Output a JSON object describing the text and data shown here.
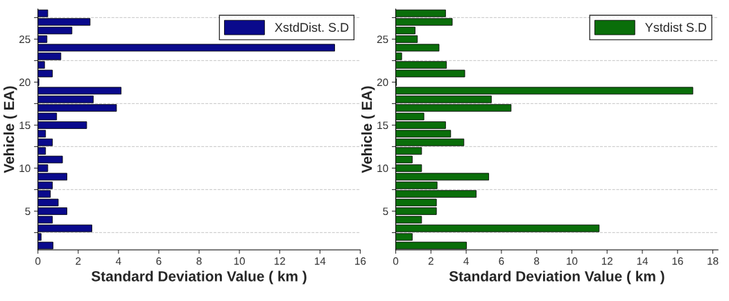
{
  "chart_data": [
    {
      "type": "bar",
      "orientation": "horizontal",
      "xlabel": "Standard Deviation Value ( km )",
      "ylabel": "Vehicle ( EA)",
      "legend": "top right",
      "x": [
        1,
        2,
        3,
        4,
        5,
        6,
        7,
        8,
        9,
        10,
        11,
        12,
        13,
        14,
        15,
        16,
        17,
        18,
        19,
        20,
        21,
        22,
        23,
        24,
        25,
        26,
        27,
        28
      ],
      "series": [
        {
          "name": "XstdDist. S.D",
          "color": "#0a0a8c",
          "values": [
            0.75,
            0.16,
            2.68,
            0.72,
            1.44,
            1.01,
            0.62,
            0.72,
            1.44,
            0.49,
            1.22,
            0.38,
            0.72,
            0.38,
            2.42,
            0.93,
            3.9,
            2.75,
            4.13,
            0.05,
            0.72,
            0.33,
            1.14,
            14.73,
            0.45,
            1.69,
            2.59,
            0.49
          ]
        }
      ],
      "xlim": [
        0,
        16
      ],
      "xticks": [
        0,
        2,
        4,
        6,
        8,
        10,
        12,
        14,
        16
      ],
      "ylim": [
        0.5,
        28.5
      ],
      "yticks": [
        {
          "value": 2.5,
          "label": null
        },
        5,
        {
          "value": 7.5,
          "label": null
        },
        10,
        {
          "value": 12.5,
          "label": null
        },
        15,
        {
          "value": 17.5,
          "label": null
        },
        20,
        {
          "value": 22.5,
          "label": null
        },
        25,
        {
          "value": 27.5,
          "label": null
        }
      ],
      "ref_lines": [
        {
          "axis": "y",
          "value": 2.5,
          "color": "#d0d0d0",
          "line_style": "dashed"
        },
        {
          "axis": "y",
          "value": 7.5,
          "color": "#d0d0d0",
          "line_style": "dashed"
        },
        {
          "axis": "y",
          "value": 12.5,
          "color": "#d0d0d0",
          "line_style": "dashed"
        },
        {
          "axis": "y",
          "value": 17.5,
          "color": "#d0d0d0",
          "line_style": "dashed"
        },
        {
          "axis": "y",
          "value": 22.5,
          "color": "#d0d0d0",
          "line_style": "dashed"
        },
        {
          "axis": "y",
          "value": 27.5,
          "color": "#d0d0d0",
          "line_style": "dashed"
        }
      ]
    },
    {
      "type": "bar",
      "orientation": "horizontal",
      "xlabel": "Standard Deviation Value ( km )",
      "ylabel": "Vehicle ( EA)",
      "legend": "top right",
      "x": [
        1,
        2,
        3,
        4,
        5,
        6,
        7,
        8,
        9,
        10,
        11,
        12,
        13,
        14,
        15,
        16,
        17,
        18,
        19,
        20,
        21,
        22,
        23,
        24,
        25,
        26,
        27,
        28
      ],
      "series": [
        {
          "name": "Ystdist S.D",
          "color": "#0a6e0a",
          "values": [
            4.02,
            0.94,
            11.55,
            1.47,
            2.31,
            2.31,
            4.57,
            2.35,
            5.28,
            1.47,
            0.94,
            1.47,
            3.87,
            3.12,
            2.83,
            1.6,
            6.55,
            5.43,
            16.87,
            0.04,
            3.92,
            2.88,
            0.34,
            2.46,
            1.23,
            1.1,
            3.21,
            2.83
          ]
        }
      ],
      "xlim": [
        0,
        18.3
      ],
      "xticks": [
        0,
        2,
        4,
        6,
        8,
        10,
        12,
        14,
        16,
        18
      ],
      "ylim": [
        0.5,
        28.5
      ],
      "yticks": [
        {
          "value": 2.5,
          "label": null
        },
        5,
        {
          "value": 7.5,
          "label": null
        },
        10,
        {
          "value": 12.5,
          "label": null
        },
        15,
        {
          "value": 17.5,
          "label": null
        },
        20,
        {
          "value": 22.5,
          "label": null
        },
        25,
        {
          "value": 27.5,
          "label": null
        }
      ],
      "ref_lines": [
        {
          "axis": "y",
          "value": 2.5,
          "color": "#d0d0d0",
          "line_style": "dashed"
        },
        {
          "axis": "y",
          "value": 7.5,
          "color": "#d0d0d0",
          "line_style": "dashed"
        },
        {
          "axis": "y",
          "value": 12.5,
          "color": "#d0d0d0",
          "line_style": "dashed"
        },
        {
          "axis": "y",
          "value": 17.5,
          "color": "#d0d0d0",
          "line_style": "dashed"
        },
        {
          "axis": "y",
          "value": 22.5,
          "color": "#d0d0d0",
          "line_style": "dashed"
        },
        {
          "axis": "y",
          "value": 27.5,
          "color": "#d0d0d0",
          "line_style": "dashed"
        }
      ]
    }
  ]
}
